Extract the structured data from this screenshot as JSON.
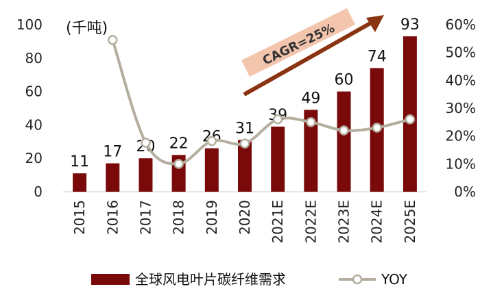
{
  "chart_data": {
    "type": "bar",
    "categories": [
      "2015",
      "2016",
      "2017",
      "2018",
      "2019",
      "2020",
      "2021E",
      "2022E",
      "2023E",
      "2024E",
      "2025E"
    ],
    "series": [
      {
        "name": "全球风电叶片碳纤维需求",
        "type": "bar",
        "axis": "left",
        "values": [
          11,
          17,
          20,
          22,
          26,
          31,
          39,
          49,
          60,
          74,
          93
        ]
      },
      {
        "name": "YOY",
        "type": "line",
        "axis": "right",
        "values": [
          null,
          0.545,
          0.176,
          0.1,
          0.182,
          0.173,
          0.26,
          0.25,
          0.22,
          0.23,
          0.26
        ]
      }
    ],
    "data_labels": [
      "11",
      "17",
      "20",
      "22",
      "26",
      "31",
      "39",
      "49",
      "60",
      "74",
      "93"
    ],
    "unit_label": "(千吨)",
    "left_axis": {
      "min": 0,
      "max": 100,
      "ticks": [
        "0",
        "20",
        "40",
        "60",
        "80",
        "100"
      ]
    },
    "right_axis": {
      "min": 0,
      "max": 0.6,
      "ticks": [
        "0%",
        "10%",
        "20%",
        "30%",
        "40%",
        "50%",
        "60%"
      ]
    },
    "annotation": "CAGR=25%",
    "colors": {
      "bar": "#7a0a0a",
      "line": "#b3ae9e",
      "arrow": "#8a3310",
      "cagr_box": "#f4c5ad"
    },
    "legend": {
      "position": "bottom",
      "items": [
        "全球风电叶片碳纤维需求",
        "YOY"
      ]
    }
  }
}
